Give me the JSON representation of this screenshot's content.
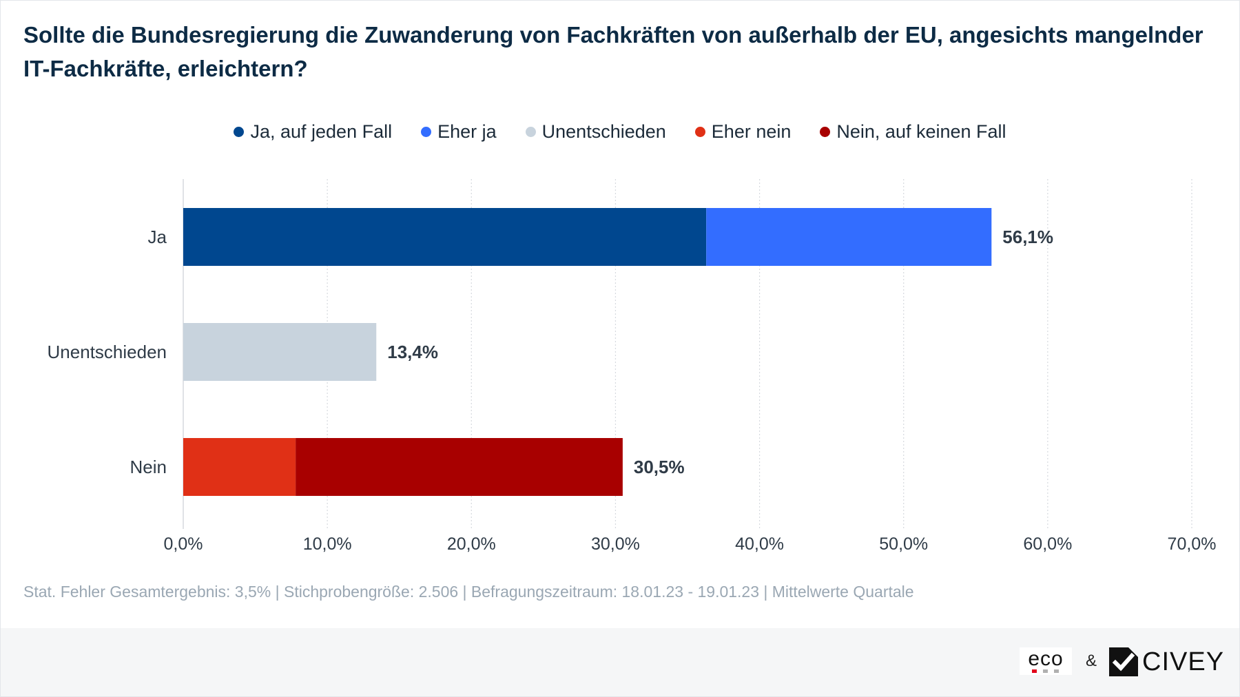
{
  "header": {
    "title": "Sollte die Bundesregierung die Zuwanderung von Fachkräften von außerhalb der EU, angesichts mangelnder IT-Fachkräfte, erleichtern?"
  },
  "legend": [
    {
      "label": "Ja, auf jeden Fall",
      "color": "#00478f"
    },
    {
      "label": "Eher ja",
      "color": "#336dff"
    },
    {
      "label": "Unentschieden",
      "color": "#c8d3dd"
    },
    {
      "label": "Eher nein",
      "color": "#e03016"
    },
    {
      "label": "Nein, auf keinen Fall",
      "color": "#a80000"
    }
  ],
  "chart_data": {
    "type": "bar",
    "orientation": "horizontal",
    "stacked": true,
    "title": "Sollte die Bundesregierung die Zuwanderung von Fachkräften von außerhalb der EU, angesichts mangelnder IT-Fachkräfte, erleichtern?",
    "categories": [
      "Ja",
      "Unentschieden",
      "Nein"
    ],
    "series": [
      {
        "name": "Ja, auf jeden Fall",
        "color": "#00478f",
        "values": [
          36.3,
          0,
          0
        ]
      },
      {
        "name": "Eher ja",
        "color": "#336dff",
        "values": [
          19.8,
          0,
          0
        ]
      },
      {
        "name": "Unentschieden",
        "color": "#c8d3dd",
        "values": [
          0,
          13.4,
          0
        ]
      },
      {
        "name": "Eher nein",
        "color": "#e03016",
        "values": [
          0,
          0,
          7.8
        ]
      },
      {
        "name": "Nein, auf keinen Fall",
        "color": "#a80000",
        "values": [
          0,
          0,
          22.7
        ]
      }
    ],
    "totals": [
      "56,1%",
      "13,4%",
      "30,5%"
    ],
    "xlim": [
      0,
      70
    ],
    "x_ticks": [
      0,
      10,
      20,
      30,
      40,
      50,
      60,
      70
    ],
    "x_tick_labels": [
      "0,0%",
      "10,0%",
      "20,0%",
      "30,0%",
      "40,0%",
      "50,0%",
      "60,0%",
      "70,0%"
    ],
    "grid": "vertical-dotted",
    "legend_position": "top-center"
  },
  "footnote": "Stat. Fehler Gesamtergebnis: 3,5% | Stichprobengröße: 2.506 | Befragungszeitraum: 18.01.23 - 19.01.23 | Mittelwerte Quartale",
  "footer": {
    "eco_logo_text": "eco",
    "eco_colors": [
      "#e2001a",
      "#b0b0b0",
      "#b0b0b0"
    ],
    "ampersand": "&",
    "civey_logo_text": "CIVEY"
  }
}
